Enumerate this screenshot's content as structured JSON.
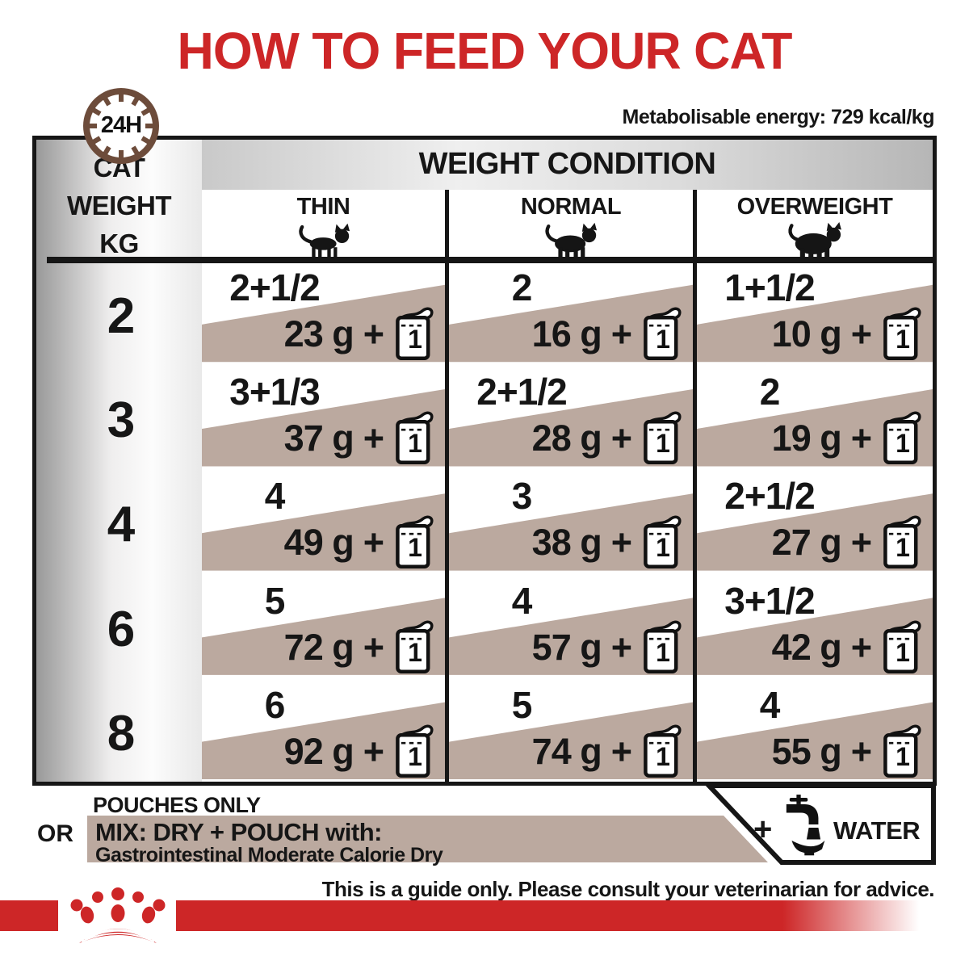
{
  "title": "HOW TO FEED YOUR CAT",
  "energy_note": "Metabolisable energy: 729 kcal/kg",
  "clock_label": "24H",
  "table": {
    "weight_condition_title": "WEIGHT CONDITION",
    "cat_weight_lines": [
      "CAT",
      "WEIGHT",
      "KG"
    ],
    "conditions": [
      "THIN",
      "NORMAL",
      "OVERWEIGHT"
    ],
    "plus_sign": "+",
    "pouch_unit_count": "1",
    "rows": [
      {
        "weight": "2",
        "cells": [
          {
            "pouches": "2+1/2",
            "grams": "23 g"
          },
          {
            "pouches": "2",
            "grams": "16 g"
          },
          {
            "pouches": "1+1/2",
            "grams": "10 g"
          }
        ]
      },
      {
        "weight": "3",
        "cells": [
          {
            "pouches": "3+1/3",
            "grams": "37 g"
          },
          {
            "pouches": "2+1/2",
            "grams": "28 g"
          },
          {
            "pouches": "2",
            "grams": "19 g"
          }
        ]
      },
      {
        "weight": "4",
        "cells": [
          {
            "pouches": "4",
            "grams": "49 g"
          },
          {
            "pouches": "3",
            "grams": "38 g"
          },
          {
            "pouches": "2+1/2",
            "grams": "27 g"
          }
        ]
      },
      {
        "weight": "6",
        "cells": [
          {
            "pouches": "5",
            "grams": "72 g"
          },
          {
            "pouches": "4",
            "grams": "57 g"
          },
          {
            "pouches": "3+1/2",
            "grams": "42 g"
          }
        ]
      },
      {
        "weight": "8",
        "cells": [
          {
            "pouches": "6",
            "grams": "92 g"
          },
          {
            "pouches": "5",
            "grams": "74 g"
          },
          {
            "pouches": "4",
            "grams": "55 g"
          }
        ]
      }
    ]
  },
  "footer": {
    "pouches_only": "POUCHES ONLY",
    "or_label": "OR",
    "mix_title": "MIX: DRY + POUCH with:",
    "mix_product": "Gastrointestinal Moderate Calorie Dry",
    "water_plus": "+",
    "water_label": "WATER",
    "disclaimer": "This is a guide only. Please consult your veterinarian for advice."
  },
  "colors": {
    "red": "#cd2627",
    "taupe": "#bba99f",
    "clock_brown": "#6d4c3b"
  }
}
